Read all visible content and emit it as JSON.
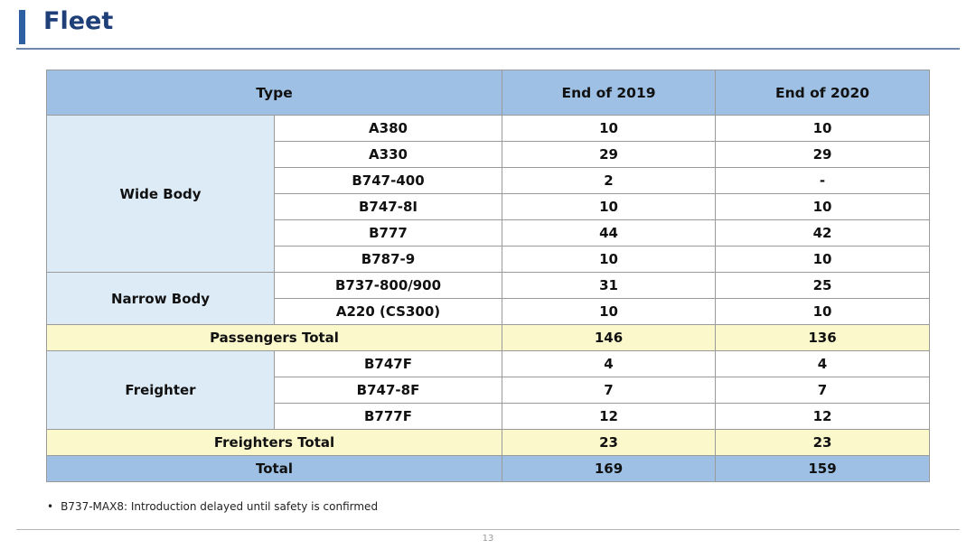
{
  "slide": {
    "title": "Fleet",
    "page_number": "13",
    "footnote": "B737-MAX8: Introduction delayed until safety is confirmed",
    "bullet_glyph": "•"
  },
  "table": {
    "headers": {
      "type": "Type",
      "col_2019": "End of 2019",
      "col_2020": "End of 2020"
    },
    "wide_body": {
      "label": "Wide Body",
      "rows": [
        {
          "model": "A380",
          "y2019": "10",
          "y2020": "10"
        },
        {
          "model": "A330",
          "y2019": "29",
          "y2020": "29"
        },
        {
          "model": "B747-400",
          "y2019": "2",
          "y2020": "-"
        },
        {
          "model": "B747-8I",
          "y2019": "10",
          "y2020": "10"
        },
        {
          "model": "B777",
          "y2019": "44",
          "y2020": "42"
        },
        {
          "model": "B787-9",
          "y2019": "10",
          "y2020": "10"
        }
      ]
    },
    "narrow_body": {
      "label": "Narrow Body",
      "rows": [
        {
          "model": "B737-800/900",
          "y2019": "31",
          "y2020": "25"
        },
        {
          "model": "A220 (CS300)",
          "y2019": "10",
          "y2020": "10"
        }
      ]
    },
    "passengers_total": {
      "label": "Passengers Total",
      "y2019": "146",
      "y2020": "136"
    },
    "freighter": {
      "label": "Freighter",
      "rows": [
        {
          "model": "B747F",
          "y2019": "4",
          "y2020": "4"
        },
        {
          "model": "B747-8F",
          "y2019": "7",
          "y2020": "7"
        },
        {
          "model": "B777F",
          "y2019": "12",
          "y2020": "12"
        }
      ]
    },
    "freighters_total": {
      "label": "Freighters Total",
      "y2019": "23",
      "y2020": "23"
    },
    "total": {
      "label": "Total",
      "y2019": "169",
      "y2020": "159"
    }
  },
  "colors": {
    "title": "#1f3f78",
    "accent_bar": "#2e5fa3",
    "header_fill": "#9dc0e4",
    "group_fill": "#ddebf7",
    "subtotal_fill": "#fbf8cc"
  }
}
